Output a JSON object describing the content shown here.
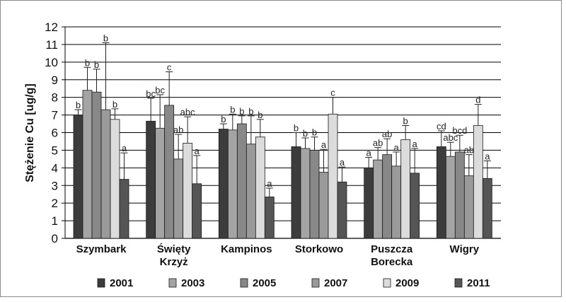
{
  "chart_data": {
    "type": "bar",
    "title": "",
    "xlabel": "",
    "ylabel": "Stężenie Cu [ug/g]",
    "ylim": [
      0,
      12
    ],
    "yticks": [
      "0",
      "1",
      "2",
      "3",
      "4",
      "5",
      "6",
      "7",
      "8",
      "9",
      "10",
      "11",
      "12"
    ],
    "grid": true,
    "legend_position": "bottom",
    "categories": [
      [
        "Szymbark"
      ],
      [
        "Święty",
        "Krzyż"
      ],
      [
        "Kampinos"
      ],
      [
        "Storkowo"
      ],
      [
        "Puszcza",
        "Borecka"
      ],
      [
        "Wigry"
      ]
    ],
    "series": [
      {
        "name": "2001",
        "color": "#3c3c3c",
        "values": [
          7.0,
          6.65,
          6.2,
          5.2,
          4.0,
          5.2
        ],
        "errors": [
          0.3,
          1.3,
          0.3,
          0.8,
          0.6,
          0.9
        ],
        "letters": [
          "b",
          "bc",
          "b",
          "b",
          "a",
          "cd"
        ]
      },
      {
        "name": "2003",
        "color": "#a4a4a4",
        "values": [
          8.4,
          6.25,
          6.15,
          5.1,
          4.45,
          4.65
        ],
        "errors": [
          1.3,
          1.9,
          0.9,
          0.6,
          0.7,
          0.8
        ],
        "letters": [
          "b",
          "bc",
          "b",
          "b",
          "ab",
          "abc"
        ]
      },
      {
        "name": "2005",
        "color": "#888888",
        "values": [
          8.3,
          7.55,
          6.5,
          5.0,
          4.75,
          4.9
        ],
        "errors": [
          1.3,
          1.9,
          0.45,
          0.75,
          0.9,
          0.95
        ],
        "letters": [
          "b",
          "c",
          "b",
          "b",
          "ab",
          "bcd"
        ]
      },
      {
        "name": "2007",
        "color": "#9a9a9a",
        "values": [
          7.3,
          4.5,
          5.35,
          3.75,
          4.1,
          3.55
        ],
        "errors": [
          3.8,
          1.4,
          1.6,
          1.3,
          0.8,
          1.2
        ],
        "letters": [
          "b",
          "ab",
          "b",
          "a",
          "a",
          "ab"
        ]
      },
      {
        "name": "2009",
        "color": "#dcdcdc",
        "values": [
          6.75,
          5.4,
          5.75,
          7.05,
          5.6,
          6.4
        ],
        "errors": [
          0.6,
          1.5,
          1.0,
          0.95,
          0.8,
          1.2
        ],
        "letters": [
          "b",
          "abc",
          "b",
          "c",
          "b",
          "d"
        ]
      },
      {
        "name": "2011",
        "color": "#555555",
        "values": [
          3.35,
          3.1,
          2.35,
          3.2,
          3.7,
          3.4
        ],
        "errors": [
          1.5,
          1.6,
          0.5,
          0.85,
          1.4,
          1.0
        ],
        "letters": [
          "a",
          "a",
          "a",
          "a",
          "a",
          "a"
        ]
      }
    ]
  }
}
